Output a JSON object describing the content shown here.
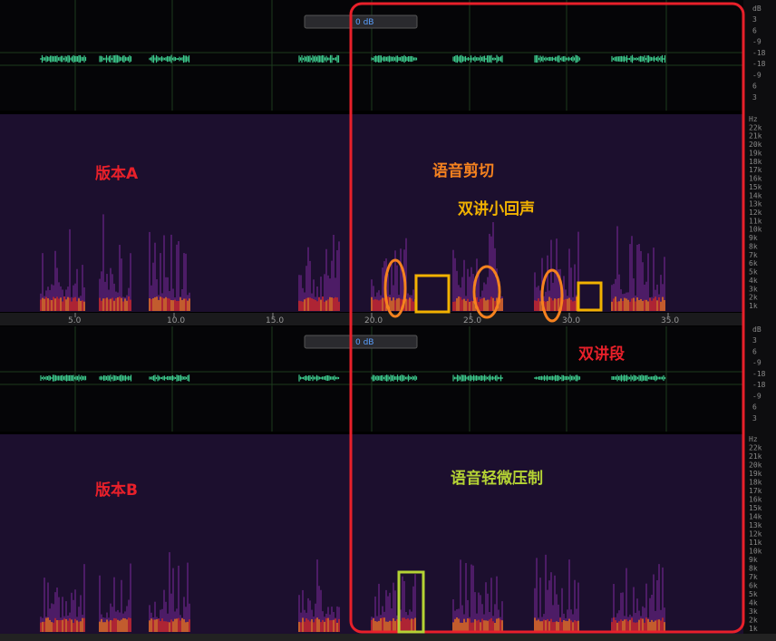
{
  "annotations": {
    "version_a": "版本A",
    "version_b": "版本B",
    "speech_cut": "语音剪切",
    "double_talk_echo": "双讲小回声",
    "double_talk_segment": "双讲段",
    "speech_suppression": "语音轻微压制"
  },
  "ruler": [
    "5.0",
    "10.0",
    "15.0",
    "20.0",
    "25.0",
    "30.0",
    "35.0"
  ],
  "panels": [
    {
      "volume": "0 dB",
      "db_scale": [
        "dB",
        "3",
        "6",
        "-9",
        "-18",
        "-18",
        "-9",
        "6",
        "3"
      ],
      "hz_scale": [
        "Hz",
        "22k",
        "21k",
        "20k",
        "19k",
        "18k",
        "17k",
        "16k",
        "15k",
        "14k",
        "13k",
        "12k",
        "11k",
        "10k",
        "9k",
        "8k",
        "7k",
        "6k",
        "5k",
        "4k",
        "3k",
        "2k",
        "1k"
      ]
    },
    {
      "volume": "0 dB",
      "db_scale": [
        "dB",
        "3",
        "6",
        "-9",
        "-18",
        "-18",
        "-9",
        "6",
        "3"
      ],
      "hz_scale": [
        "Hz",
        "22k",
        "21k",
        "20k",
        "19k",
        "18k",
        "17k",
        "16k",
        "15k",
        "14k",
        "13k",
        "12k",
        "11k",
        "10k",
        "9k",
        "8k",
        "7k",
        "6k",
        "5k",
        "4k",
        "3k",
        "2k",
        "1k"
      ]
    }
  ]
}
